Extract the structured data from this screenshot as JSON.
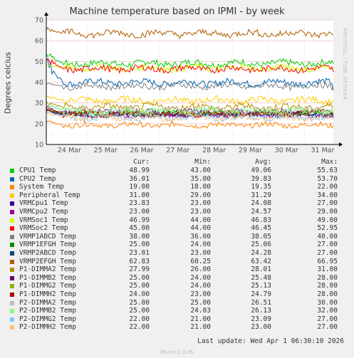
{
  "title": "Machine temperature based on IPMI - by week",
  "side_text": "RRDTOOL / TOBI OETIKER",
  "legend_headers": {
    "cur": "Cur:",
    "min": "Min:",
    "avg": "Avg:",
    "max": "Max:"
  },
  "footer": {
    "last_update": "Last update: Wed Apr  1 06:30:10 2026",
    "munin": "Munin 2.0.76"
  },
  "chart_data": {
    "type": "line",
    "ylabel": "Degrees celcius",
    "ylim": [
      10,
      70
    ],
    "yticks": [
      10,
      20,
      30,
      40,
      50,
      60,
      70
    ],
    "xticks": [
      "24 Mar",
      "25 Mar",
      "26 Mar",
      "27 Mar",
      "28 Mar",
      "29 Mar",
      "30 Mar",
      "31 Mar"
    ],
    "grid": true,
    "series": [
      {
        "name": "CPU1 Temp",
        "color": "#00cc00",
        "cur": "48.99",
        "min": "43.00",
        "avg": "49.06",
        "max": "55.63"
      },
      {
        "name": "CPU2 Temp",
        "color": "#0066b3",
        "cur": "36.01",
        "min": "35.00",
        "avg": "39.83",
        "max": "53.70"
      },
      {
        "name": "System Temp",
        "color": "#ff8000",
        "cur": "19.00",
        "min": "18.00",
        "avg": "19.35",
        "max": "22.00"
      },
      {
        "name": "Peripheral Temp",
        "color": "#ffcc00",
        "cur": "31.00",
        "min": "29.00",
        "avg": "31.29",
        "max": "34.00"
      },
      {
        "name": "VRMCpu1 Temp",
        "color": "#330099",
        "cur": "23.83",
        "min": "23.00",
        "avg": "24.08",
        "max": "27.00"
      },
      {
        "name": "VRMCpu2 Temp",
        "color": "#990099",
        "cur": "23.00",
        "min": "23.00",
        "avg": "24.57",
        "max": "29.00"
      },
      {
        "name": "VRMSoc1 Temp",
        "color": "#ccff00",
        "cur": "46.99",
        "min": "44.00",
        "avg": "46.83",
        "max": "49.00"
      },
      {
        "name": "VRMSoc2 Temp",
        "color": "#ff0000",
        "cur": "45.00",
        "min": "44.00",
        "avg": "46.45",
        "max": "52.95"
      },
      {
        "name": "VRMP1ABCD Temp",
        "color": "#808080",
        "cur": "38.00",
        "min": "36.00",
        "avg": "38.05",
        "max": "40.00"
      },
      {
        "name": "VRMP1EFGH Temp",
        "color": "#008f00",
        "cur": "25.00",
        "min": "24.00",
        "avg": "25.06",
        "max": "27.00"
      },
      {
        "name": "VRMP2ABCD Temp",
        "color": "#00487d",
        "cur": "23.01",
        "min": "23.00",
        "avg": "24.28",
        "max": "27.00"
      },
      {
        "name": "VRMP2EFGH Temp",
        "color": "#b35a00",
        "cur": "62.83",
        "min": "60.25",
        "avg": "63.42",
        "max": "66.95"
      },
      {
        "name": "P1-DIMMA2 Temp",
        "color": "#b38f00",
        "cur": "27.99",
        "min": "26.00",
        "avg": "28.01",
        "max": "31.00"
      },
      {
        "name": "P1-DIMMB2 Temp",
        "color": "#6b006b",
        "cur": "25.00",
        "min": "24.00",
        "avg": "25.48",
        "max": "28.00"
      },
      {
        "name": "P1-DIMMG2 Temp",
        "color": "#8fb300",
        "cur": "25.00",
        "min": "24.00",
        "avg": "25.13",
        "max": "28.00"
      },
      {
        "name": "P1-DIMMH2 Temp",
        "color": "#b30000",
        "cur": "24.00",
        "min": "23.00",
        "avg": "24.79",
        "max": "28.00"
      },
      {
        "name": "P2-DIMMA2 Temp",
        "color": "#bebebe",
        "cur": "25.00",
        "min": "25.00",
        "avg": "26.51",
        "max": "30.00"
      },
      {
        "name": "P2-DIMMB2 Temp",
        "color": "#80ff80",
        "cur": "25.00",
        "min": "24.03",
        "avg": "26.13",
        "max": "32.00"
      },
      {
        "name": "P2-DIMMG2 Temp",
        "color": "#80c9ff",
        "cur": "22.00",
        "min": "21.00",
        "avg": "23.09",
        "max": "27.00"
      },
      {
        "name": "P2-DIMMH2 Temp",
        "color": "#ffc080",
        "cur": "22.00",
        "min": "21.00",
        "avg": "23.00",
        "max": "27.00"
      }
    ]
  }
}
